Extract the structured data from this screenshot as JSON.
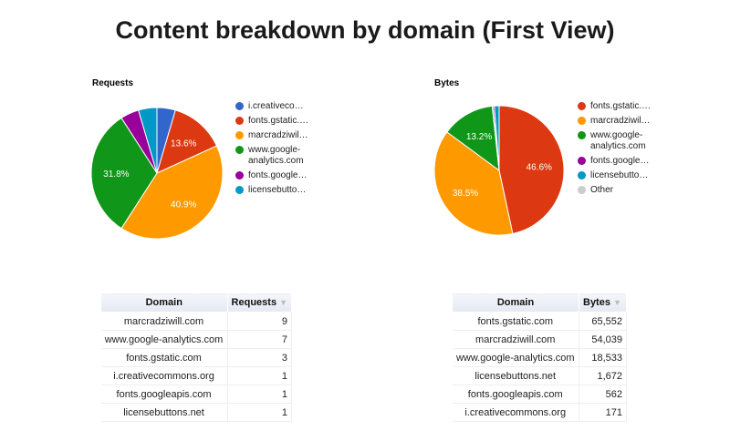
{
  "header": {
    "title": "Content breakdown by domain (First View)"
  },
  "charts": {
    "requests": {
      "title": "Requests",
      "legend": [
        {
          "label": "i.creativeco…",
          "color": "#3366cc"
        },
        {
          "label": "fonts.gstatic.…",
          "color": "#dc3912"
        },
        {
          "label": "marcradziwil…",
          "color": "#ff9900"
        },
        {
          "label": "www.google-analytics.com",
          "color": "#109618"
        },
        {
          "label": "fonts.google…",
          "color": "#990099"
        },
        {
          "label": "licensebutto…",
          "color": "#0099c6"
        }
      ]
    },
    "bytes": {
      "title": "Bytes",
      "legend": [
        {
          "label": "fonts.gstatic.…",
          "color": "#dc3912"
        },
        {
          "label": "marcradziwil…",
          "color": "#ff9900"
        },
        {
          "label": "www.google-analytics.com",
          "color": "#109618"
        },
        {
          "label": "fonts.google…",
          "color": "#990099"
        },
        {
          "label": "licensebutto…",
          "color": "#0099c6"
        },
        {
          "label": "Other",
          "color": "#cccccc"
        }
      ]
    }
  },
  "tables": {
    "requests": {
      "headers": [
        "Domain",
        "Requests"
      ],
      "sort_icon": "▼",
      "rows": [
        [
          "marcradziwill.com",
          "9"
        ],
        [
          "www.google-analytics.com",
          "7"
        ],
        [
          "fonts.gstatic.com",
          "3"
        ],
        [
          "i.creativecommons.org",
          "1"
        ],
        [
          "fonts.googleapis.com",
          "1"
        ],
        [
          "licensebuttons.net",
          "1"
        ]
      ]
    },
    "bytes": {
      "headers": [
        "Domain",
        "Bytes"
      ],
      "sort_icon": "▼",
      "rows": [
        [
          "fonts.gstatic.com",
          "65,552"
        ],
        [
          "marcradziwill.com",
          "54,039"
        ],
        [
          "www.google-analytics.com",
          "18,533"
        ],
        [
          "licensebuttons.net",
          "1,672"
        ],
        [
          "fonts.googleapis.com",
          "562"
        ],
        [
          "i.creativecommons.org",
          "171"
        ]
      ]
    }
  },
  "chart_data": [
    {
      "type": "pie",
      "title": "Requests",
      "categories": [
        "i.creativecommons.org",
        "fonts.gstatic.com",
        "marcradziwill.com",
        "www.google-analytics.com",
        "fonts.googleapis.com",
        "licensebuttons.net"
      ],
      "values": [
        1,
        3,
        9,
        7,
        1,
        1
      ],
      "colors": [
        "#3366cc",
        "#dc3912",
        "#ff9900",
        "#109618",
        "#990099",
        "#0099c6"
      ],
      "slice_labels": [
        "",
        "13.6%",
        "40.9%",
        "31.8%",
        "",
        ""
      ],
      "legend_position": "right"
    },
    {
      "type": "pie",
      "title": "Bytes",
      "categories": [
        "fonts.gstatic.com",
        "marcradziwill.com",
        "www.google-analytics.com",
        "fonts.googleapis.com",
        "licensebuttons.net",
        "Other"
      ],
      "values": [
        65552,
        54039,
        18533,
        562,
        1672,
        171
      ],
      "colors": [
        "#dc3912",
        "#ff9900",
        "#109618",
        "#990099",
        "#0099c6",
        "#cccccc"
      ],
      "slice_labels": [
        "46.6%",
        "38.5%",
        "13.2%",
        "",
        "",
        ""
      ],
      "legend_position": "right"
    }
  ]
}
